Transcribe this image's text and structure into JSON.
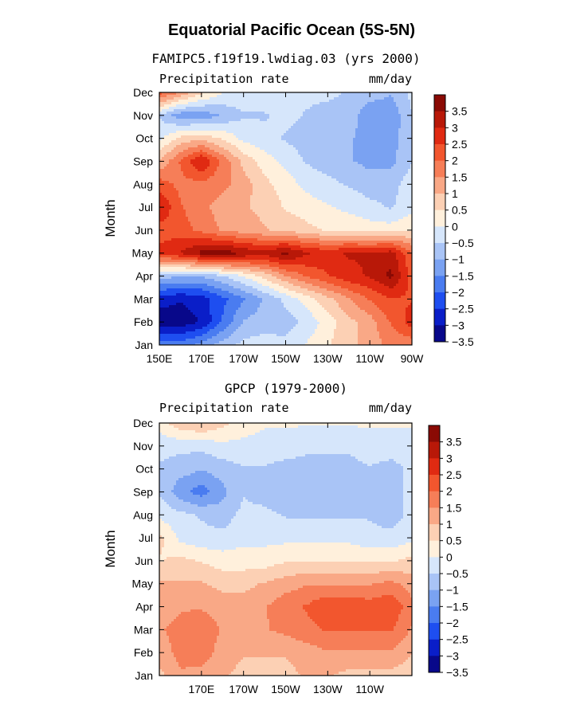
{
  "main_title": "Equatorial Pacific Ocean (5S-5N)",
  "colors": [
    "#08088a",
    "#0a1ec8",
    "#1e4ef0",
    "#4a7cf0",
    "#7aa2f2",
    "#a9c4f6",
    "#d6e6fb",
    "#fff0dc",
    "#fcd0b4",
    "#f9a886",
    "#f67e58",
    "#f2562e",
    "#e02a12",
    "#b81808",
    "#8a0a04"
  ],
  "chart_data": [
    {
      "type": "heatmap",
      "title": "FAMIPC5.f19f19.lwdiag.03 (yrs 2000)",
      "left_label": "Precipitation rate",
      "right_label": "mm/day",
      "ylabel": "Month",
      "y_ticks": [
        "Jan",
        "Feb",
        "Mar",
        "Apr",
        "May",
        "Jun",
        "Jul",
        "Aug",
        "Sep",
        "Oct",
        "Nov",
        "Dec"
      ],
      "x_ticks": [
        "150E",
        "170E",
        "170W",
        "150W",
        "130W",
        "110W",
        "90W"
      ],
      "legend_labels": [
        "3.5",
        "3",
        "2.5",
        "2",
        "1.5",
        "1",
        "0.5",
        "0",
        "-0.5",
        "-1",
        "-1.5",
        "-2",
        "-2.5",
        "-3",
        "-3.5"
      ],
      "lon": [
        150,
        160,
        170,
        180,
        190,
        200,
        210,
        220,
        230,
        240,
        250,
        260,
        270
      ],
      "values": [
        [
          -2.0,
          -2.0,
          -1.6,
          -1.0,
          -0.6,
          -0.5,
          -0.6,
          -0.2,
          0.2,
          0.6,
          1.0,
          1.4,
          1.4
        ],
        [
          -3.6,
          -3.6,
          -3.2,
          -2.2,
          -1.2,
          -1.0,
          -1.0,
          -0.6,
          0.0,
          0.6,
          1.0,
          1.8,
          2.5
        ],
        [
          -3.0,
          -3.2,
          -3.0,
          -2.4,
          -1.8,
          -1.2,
          -0.6,
          0.0,
          0.6,
          1.2,
          1.8,
          2.2,
          2.2
        ],
        [
          -1.0,
          -1.2,
          -1.2,
          -0.8,
          -0.2,
          0.4,
          1.2,
          1.8,
          2.2,
          2.6,
          2.8,
          3.4,
          2.0
        ],
        [
          2.4,
          2.8,
          3.4,
          3.6,
          3.2,
          3.0,
          3.4,
          2.8,
          2.6,
          2.8,
          2.8,
          3.0,
          1.8
        ],
        [
          2.0,
          2.0,
          1.6,
          1.2,
          1.0,
          0.8,
          0.6,
          0.4,
          0.2,
          0.2,
          0.0,
          0.0,
          0.2
        ],
        [
          2.8,
          1.8,
          1.4,
          1.0,
          0.8,
          0.6,
          0.2,
          0.0,
          -0.2,
          -0.4,
          -0.6,
          -0.8,
          -0.4
        ],
        [
          2.0,
          1.6,
          1.6,
          1.4,
          1.0,
          0.4,
          0.0,
          -0.4,
          -0.6,
          -0.8,
          -1.0,
          -1.0,
          -0.4
        ],
        [
          0.8,
          1.8,
          2.8,
          1.6,
          0.6,
          0.0,
          -0.4,
          -0.8,
          -1.0,
          -1.2,
          -1.4,
          -1.4,
          -0.8
        ],
        [
          -0.4,
          0.4,
          0.6,
          0.2,
          -0.4,
          -0.6,
          -0.8,
          -1.0,
          -1.2,
          -1.2,
          -1.4,
          -1.4,
          -1.0
        ],
        [
          -0.8,
          -1.6,
          -1.6,
          -1.2,
          -0.8,
          -0.8,
          -0.6,
          -0.8,
          -1.0,
          -1.0,
          -1.6,
          -1.6,
          -0.8
        ],
        [
          2.0,
          1.2,
          0.4,
          -0.2,
          -0.4,
          -0.4,
          -0.4,
          -0.6,
          -0.6,
          -0.8,
          -1.0,
          -1.2,
          -0.6
        ]
      ]
    },
    {
      "type": "heatmap",
      "title": "GPCP (1979-2000)",
      "left_label": "Precipitation rate",
      "right_label": "mm/day",
      "ylabel": "Month",
      "y_ticks": [
        "Jan",
        "Feb",
        "Mar",
        "Apr",
        "May",
        "Jun",
        "Jul",
        "Aug",
        "Sep",
        "Oct",
        "Nov",
        "Dec"
      ],
      "x_ticks": [
        "170E",
        "170W",
        "150W",
        "130W",
        "110W"
      ],
      "legend_labels": [
        "3.5",
        "3",
        "2.5",
        "2",
        "1.5",
        "1",
        "0.5",
        "0",
        "-0.5",
        "-1",
        "-1.5",
        "-2",
        "-2.5",
        "-3",
        "-3.5"
      ],
      "lon": [
        150,
        160,
        170,
        180,
        190,
        200,
        210,
        220,
        230,
        240,
        250,
        260,
        270
      ],
      "values": [
        [
          0.6,
          1.2,
          1.0,
          0.8,
          0.6,
          0.6,
          0.6,
          0.8,
          0.8,
          0.6,
          0.6,
          0.6,
          0.4
        ],
        [
          1.0,
          1.4,
          1.6,
          1.0,
          0.8,
          0.8,
          0.8,
          1.0,
          1.2,
          1.2,
          1.2,
          1.2,
          0.8
        ],
        [
          1.2,
          1.4,
          1.6,
          1.2,
          1.0,
          1.2,
          1.4,
          1.6,
          1.8,
          1.8,
          1.8,
          1.8,
          1.2
        ],
        [
          1.0,
          1.2,
          1.2,
          1.0,
          1.0,
          1.2,
          1.6,
          1.8,
          2.2,
          2.2,
          2.0,
          2.2,
          1.4
        ],
        [
          0.8,
          0.8,
          0.8,
          0.6,
          0.6,
          0.8,
          1.0,
          1.2,
          1.2,
          1.2,
          1.2,
          1.4,
          1.0
        ],
        [
          0.2,
          0.4,
          0.2,
          0.0,
          0.0,
          0.0,
          0.2,
          0.2,
          0.2,
          0.2,
          0.2,
          0.2,
          0.4
        ],
        [
          0.4,
          -0.4,
          -0.6,
          -0.6,
          -0.4,
          -0.4,
          -0.4,
          -0.4,
          -0.4,
          -0.4,
          -0.6,
          -0.6,
          -0.4
        ],
        [
          -0.4,
          -0.6,
          -0.8,
          -1.0,
          -0.6,
          -0.6,
          -0.8,
          -0.8,
          -0.8,
          -0.8,
          -0.8,
          -1.0,
          -0.6
        ],
        [
          -0.8,
          -1.6,
          -2.0,
          -1.4,
          -0.8,
          -1.0,
          -1.2,
          -1.2,
          -1.2,
          -1.2,
          -0.8,
          -1.0,
          -0.6
        ],
        [
          -0.8,
          -1.0,
          -1.2,
          -1.0,
          -0.8,
          -0.8,
          -1.0,
          -1.0,
          -1.0,
          -1.0,
          -0.8,
          -1.0,
          -0.6
        ],
        [
          -0.6,
          -0.6,
          -0.6,
          -0.4,
          -0.4,
          -0.4,
          -0.4,
          -0.6,
          -0.6,
          -0.6,
          -0.4,
          -0.4,
          -0.4
        ],
        [
          0.0,
          0.6,
          0.8,
          0.4,
          0.0,
          -0.2,
          -0.2,
          -0.2,
          -0.2,
          -0.2,
          -0.2,
          -0.2,
          -0.2
        ]
      ]
    }
  ]
}
